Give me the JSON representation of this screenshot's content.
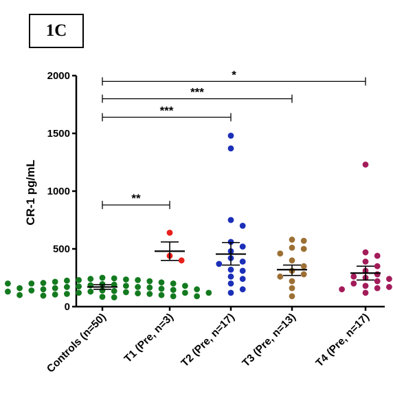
{
  "panel_label": "1C",
  "chart_data": {
    "type": "scatter",
    "title": "",
    "xlabel": "",
    "ylabel": "CR-1 pg/mL",
    "ylim": [
      0,
      2000
    ],
    "yticks": [
      0,
      500,
      1000,
      1500,
      2000
    ],
    "grid": false,
    "categories": [
      "Controls (n=50)",
      "T1 (Pre, n=3)",
      "T2 (Pre, n=17)",
      "T3 (Pre, n=13)",
      "T4 (Pre, n=17)"
    ],
    "colors": [
      "#137a1f",
      "#e8201c",
      "#1b2fb8",
      "#9c7034",
      "#a31c5a"
    ],
    "series": [
      {
        "values": [
          250,
          245,
          240,
          235,
          230,
          230,
          225,
          220,
          215,
          210,
          205,
          200,
          200,
          195,
          190,
          185,
          180,
          180,
          175,
          170,
          170,
          165,
          160,
          160,
          155,
          150,
          150,
          145,
          140,
          140,
          135,
          130,
          130,
          125,
          120,
          120,
          115,
          110,
          110,
          105,
          100,
          100,
          95,
          90,
          90,
          85,
          80,
          120,
          160,
          200
        ],
        "mean": 170,
        "sem_low": 150,
        "sem_high": 190
      },
      {
        "values": [
          640,
          440,
          400
        ],
        "mean": 480,
        "sem_low": 400,
        "sem_high": 560
      },
      {
        "values": [
          1480,
          1370,
          750,
          700,
          560,
          520,
          480,
          420,
          390,
          370,
          320,
          310,
          260,
          240,
          200,
          150,
          120
        ],
        "mean": 455,
        "sem_low": 360,
        "sem_high": 555
      },
      {
        "values": [
          580,
          570,
          510,
          500,
          460,
          400,
          350,
          310,
          280,
          260,
          220,
          160,
          90
        ],
        "mean": 320,
        "sem_low": 270,
        "sem_high": 360
      },
      {
        "values": [
          1230,
          470,
          440,
          390,
          350,
          310,
          280,
          260,
          250,
          240,
          220,
          200,
          180,
          170,
          160,
          150,
          120
        ],
        "mean": 290,
        "sem_low": 230,
        "sem_high": 350
      }
    ],
    "significance": [
      {
        "from": 0,
        "to": 1,
        "level": 880,
        "label": "**"
      },
      {
        "from": 0,
        "to": 2,
        "level": 1640,
        "label": "***"
      },
      {
        "from": 0,
        "to": 3,
        "level": 1800,
        "label": "***"
      },
      {
        "from": 0,
        "to": 4,
        "level": 1950,
        "label": "*"
      }
    ]
  }
}
